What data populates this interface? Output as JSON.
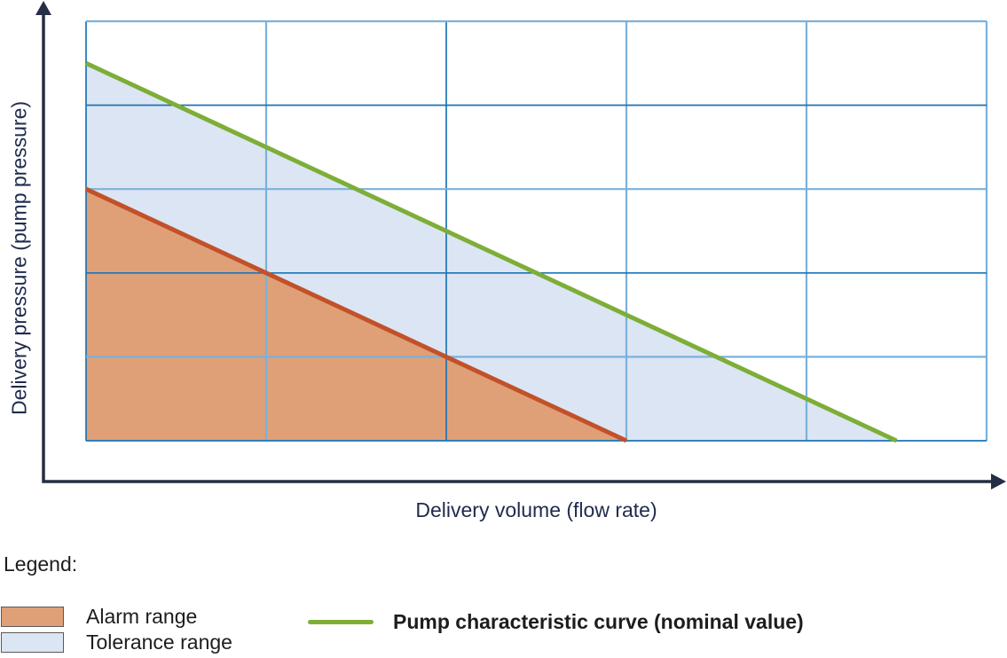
{
  "chart_data": {
    "type": "area",
    "xlabel": "Delivery volume (flow rate)",
    "ylabel": "Delivery pressure (pump pressure)",
    "xlim": [
      0,
      5
    ],
    "ylim": [
      0,
      5
    ],
    "axis_ticks_labeled": false,
    "grid": {
      "x_divisions": 5,
      "y_divisions": 5,
      "shade_colors": {
        "dark": "#1A74B6",
        "light": "#7AB1DC"
      },
      "shade_widths": {
        "dark": 1.7,
        "light": 2.2
      },
      "x_line_shades": [
        "dark",
        "light",
        "dark",
        "light",
        "light",
        "light"
      ],
      "y_line_shades_bottom_to_top": [
        "dark",
        "light",
        "dark",
        "light",
        "dark",
        "light"
      ]
    },
    "areas": [
      {
        "id": "tolerance-range",
        "vertices": [
          [
            0,
            4.5
          ],
          [
            4.5,
            0
          ],
          [
            0,
            0
          ]
        ],
        "color": "#DCE5F3"
      },
      {
        "id": "alarm-range",
        "vertices": [
          [
            0,
            3
          ],
          [
            3,
            0
          ],
          [
            0,
            0
          ]
        ],
        "color": "#DFA077"
      }
    ],
    "series": [
      {
        "id": "nominal-curve",
        "x": [
          0,
          4.5
        ],
        "y": [
          4.5,
          0
        ],
        "color": "#7DAE37",
        "width": 5
      },
      {
        "id": "alarm-boundary",
        "x": [
          0,
          3
        ],
        "y": [
          3,
          0
        ],
        "color": "#C2512A",
        "width": 5
      }
    ]
  },
  "axes": {
    "color": "#252E44",
    "label_color": "#1F2B4D"
  },
  "legend": {
    "heading": "Legend:",
    "items": [
      {
        "type": "area",
        "label": "Alarm range",
        "color": "#DFA077",
        "border": "#5A5A5A"
      },
      {
        "type": "area",
        "label": "Tolerance range",
        "color": "#DCE5F3",
        "border": "#5A5A5A"
      },
      {
        "type": "line",
        "label": "Pump characteristic curve (nominal value)",
        "color": "#7DAE37"
      }
    ]
  },
  "text_color": "#1D1D1B",
  "background": "#FFFFFF"
}
